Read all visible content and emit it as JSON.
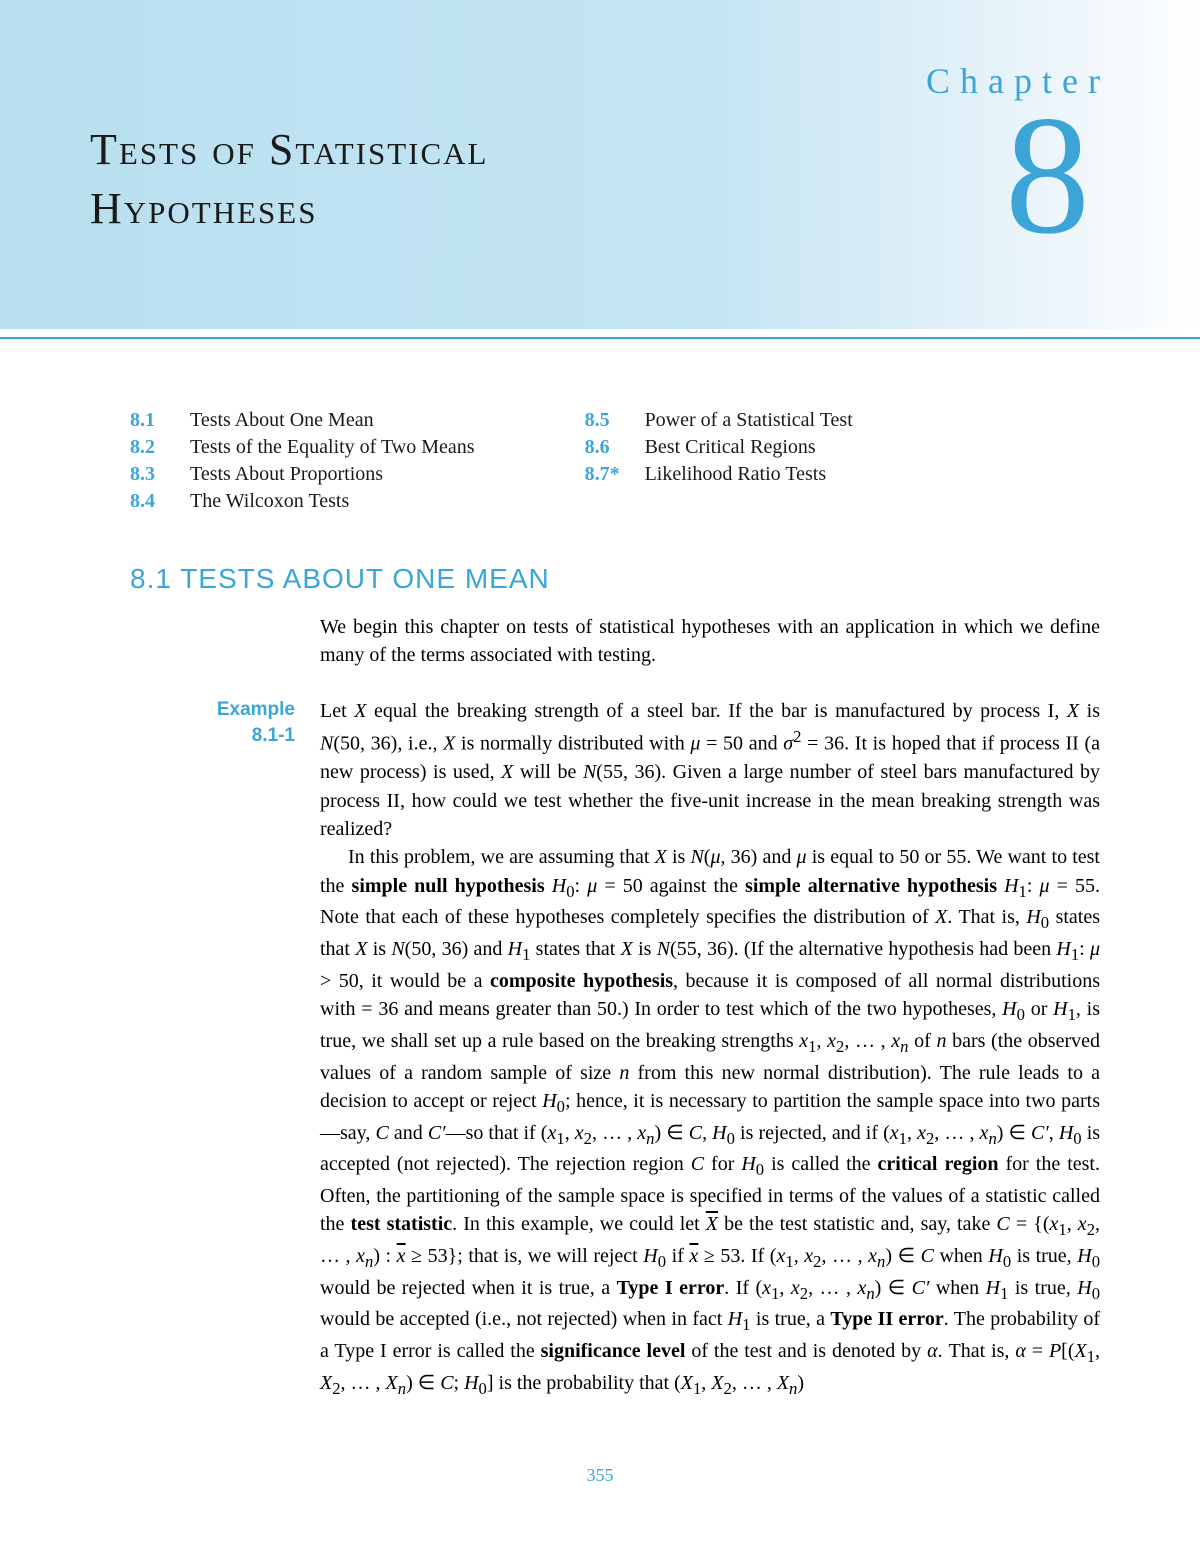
{
  "colors": {
    "accent": "#3ba5d8",
    "banner_start": "#b8dff0",
    "banner_end": "#ffffff",
    "text": "#1a1a1a"
  },
  "header": {
    "chapter_label": "Chapter",
    "chapter_number": "8",
    "title_line1": "Tests of Statistical",
    "title_line2": "Hypotheses"
  },
  "toc": {
    "left": [
      {
        "num": "8.1",
        "label": "Tests About One Mean"
      },
      {
        "num": "8.2",
        "label": "Tests of the Equality of Two Means"
      },
      {
        "num": "8.3",
        "label": "Tests About Proportions"
      },
      {
        "num": "8.4",
        "label": "The Wilcoxon Tests"
      }
    ],
    "right": [
      {
        "num": "8.5",
        "label": "Power of a Statistical Test"
      },
      {
        "num": "8.6",
        "label": "Best Critical Regions"
      },
      {
        "num": "8.7*",
        "label": "Likelihood Ratio Tests"
      }
    ]
  },
  "section": {
    "heading": "8.1 TESTS ABOUT ONE MEAN",
    "intro": "We begin this chapter on tests of statistical hypotheses with an application in which we define many of the terms associated with testing."
  },
  "example": {
    "label_line1": "Example",
    "label_line2": "8.1-1",
    "body_html": "Let <em class='var'>X</em> equal the breaking strength of a steel bar. If the bar is manufactured by process I, <em class='var'>X</em> is <em class='var'>N</em>(50, 36), i.e., <em class='var'>X</em> is normally distributed with <em class='var'>μ</em> = 50 and <em class='var'>σ</em><sup>2</sup> = 36. It is hoped that if process II (a new process) is used, <em class='var'>X</em> will be <em class='var'>N</em>(55, 36). Given a large number of steel bars manufactured by process II, how could we test whether the five-unit increase in the mean breaking strength was realized?",
    "body2_html": "In this problem, we are assuming that <em class='var'>X</em> is <em class='var'>N</em>(<em class='var'>μ</em>, 36) and <em class='var'>μ</em> is equal to 50 or 55. We want to test the <span class='bold'>simple null hypothesis</span> <em class='var'>H</em><sub>0</sub>: <em class='var'>μ</em> = 50 against the <span class='bold'>simple alternative hypothesis</span> <em class='var'>H</em><sub>1</sub>: <em class='var'>μ</em> = 55. Note that each of these hypotheses completely specifies the distribution of <em class='var'>X</em>. That is, <em class='var'>H</em><sub>0</sub> states that <em class='var'>X</em> is <em class='var'>N</em>(50, 36) and <em class='var'>H</em><sub>1</sub> states that <em class='var'>X</em> is <em class='var'>N</em>(55, 36). (If the alternative hypothesis had been <em class='var'>H</em><sub>1</sub>: <em class='var'>μ</em> &gt; 50, it would be a <span class='bold'>composite hypothesis</span>, because it is composed of all normal distributions with = 36 and means greater than 50.) In order to test which of the two hypotheses, <em class='var'>H</em><sub>0</sub> or <em class='var'>H</em><sub>1</sub>, is true, we shall set up a rule based on the breaking strengths <em class='var'>x</em><sub>1</sub>, <em class='var'>x</em><sub>2</sub>, … , <em class='var'>x<sub>n</sub></em> of <em class='var'>n</em> bars (the observed values of a random sample of size <em class='var'>n</em> from this new normal distribution). The rule leads to a decision to accept or reject <em class='var'>H</em><sub>0</sub>; hence, it is necessary to partition the sample space into two parts—say, <em class='var'>C</em> and <em class='var'>C′</em>—so that if (<em class='var'>x</em><sub>1</sub>, <em class='var'>x</em><sub>2</sub>, … , <em class='var'>x<sub>n</sub></em>) ∈ <em class='var'>C</em>, <em class='var'>H</em><sub>0</sub> is rejected, and if (<em class='var'>x</em><sub>1</sub>, <em class='var'>x</em><sub>2</sub>, … , <em class='var'>x<sub>n</sub></em>) ∈ <em class='var'>C′</em>, <em class='var'>H</em><sub>0</sub> is accepted (not rejected). The rejection region <em class='var'>C</em> for <em class='var'>H</em><sub>0</sub> is called the <span class='bold'>critical region</span> for the test. Often, the partitioning of the sample space is specified in terms of the values of a statistic called the <span class='bold'>test statistic</span>. In this example, we could let <span style='text-decoration:overline'><em class='var'>X</em></span> be the test statistic and, say, take <em class='var'>C</em> = {(<em class='var'>x</em><sub>1</sub>, <em class='var'>x</em><sub>2</sub>, … , <em class='var'>x<sub>n</sub></em>) : <span style='text-decoration:overline'><em class='var'>x</em></span> ≥ 53}; that is, we will reject <em class='var'>H</em><sub>0</sub> if <span style='text-decoration:overline'><em class='var'>x</em></span> ≥ 53. If (<em class='var'>x</em><sub>1</sub>, <em class='var'>x</em><sub>2</sub>, … , <em class='var'>x<sub>n</sub></em>) ∈ <em class='var'>C</em> when <em class='var'>H</em><sub>0</sub> is true, <em class='var'>H</em><sub>0</sub> would be rejected when it is true, a <span class='bold'>Type I error</span>. If (<em class='var'>x</em><sub>1</sub>, <em class='var'>x</em><sub>2</sub>, … , <em class='var'>x<sub>n</sub></em>) ∈ <em class='var'>C′</em> when <em class='var'>H</em><sub>1</sub> is true, <em class='var'>H</em><sub>0</sub> would be accepted (i.e., not rejected) when in fact <em class='var'>H</em><sub>1</sub> is true, a <span class='bold'>Type II error</span>. The probability of a Type I error is called the <span class='bold'>significance level</span> of the test and is denoted by <em class='var'>α</em>. That is, <em class='var'>α</em> = <em class='var'>P</em>[(<em class='var'>X</em><sub>1</sub>, <em class='var'>X</em><sub>2</sub>, … , <em class='var'>X<sub>n</sub></em>) ∈ <em class='var'>C</em>; <em class='var'>H</em><sub>0</sub>] is the probability that (<em class='var'>X</em><sub>1</sub>, <em class='var'>X</em><sub>2</sub>, … , <em class='var'>X<sub>n</sub></em>)"
  },
  "page_number": "355"
}
